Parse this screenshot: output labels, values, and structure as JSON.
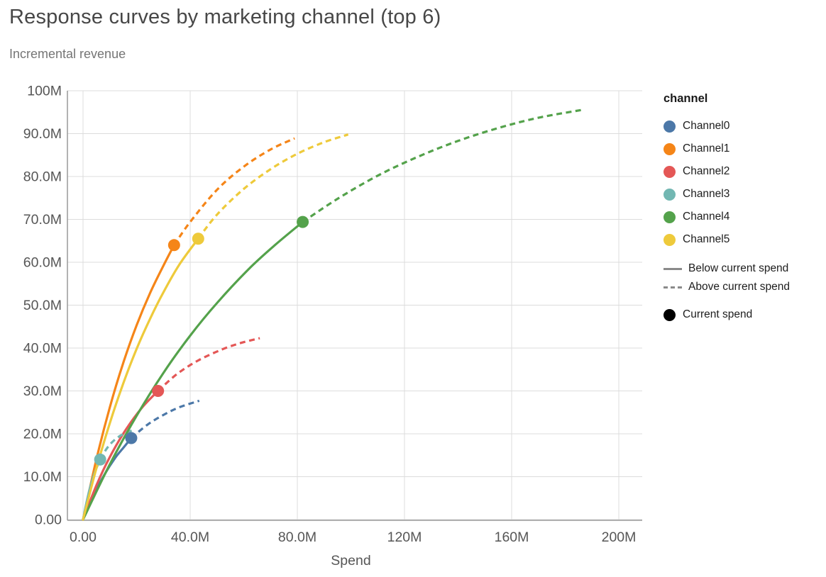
{
  "page": {
    "title": "Response curves by marketing channel (top 6)",
    "subtitle": "Incremental revenue"
  },
  "chart_data": {
    "type": "line",
    "title": "Response curves by marketing channel (top 6)",
    "subtitle": "Incremental revenue",
    "xlabel": "Spend",
    "ylabel": "Incremental revenue",
    "values_in": "millions",
    "xlim": [
      0,
      200
    ],
    "ylim": [
      0,
      100
    ],
    "grid": true,
    "legend_position": "right",
    "colors": {
      "grid": "#dcdcdc",
      "domain": "#9a9a9a",
      "tick_label": "#565656",
      "legend_line": "#8a8a8a",
      "current_spend_dot": "#000000"
    },
    "x_ticks": [
      {
        "value": 0,
        "label": "0.00"
      },
      {
        "value": 40,
        "label": "40.0M"
      },
      {
        "value": 80,
        "label": "80.0M"
      },
      {
        "value": 120,
        "label": "120M"
      },
      {
        "value": 160,
        "label": "160M"
      },
      {
        "value": 200,
        "label": "200M"
      }
    ],
    "y_ticks": [
      {
        "value": 0,
        "label": "0.00"
      },
      {
        "value": 10,
        "label": "10.0M"
      },
      {
        "value": 20,
        "label": "20.0M"
      },
      {
        "value": 30,
        "label": "30.0M"
      },
      {
        "value": 40,
        "label": "40.0M"
      },
      {
        "value": 50,
        "label": "50.0M"
      },
      {
        "value": 60,
        "label": "60.0M"
      },
      {
        "value": 70,
        "label": "70.0M"
      },
      {
        "value": 80,
        "label": "80.0M"
      },
      {
        "value": 90,
        "label": "90.0M"
      },
      {
        "value": 100,
        "label": "100M"
      }
    ],
    "series": [
      {
        "name": "Channel0",
        "color": "#4c78a8",
        "current_spend": {
          "x": 18,
          "y": 19
        },
        "solid": [
          [
            0,
            0
          ],
          [
            4,
            5.8
          ],
          [
            8,
            10.5
          ],
          [
            12,
            14.4
          ],
          [
            15,
            16.7
          ],
          [
            18,
            19
          ]
        ],
        "dashed": [
          [
            18,
            19
          ],
          [
            24,
            22.1
          ],
          [
            30,
            24.4
          ],
          [
            36,
            26.2
          ],
          [
            43.4,
            27.7
          ]
        ]
      },
      {
        "name": "Channel1",
        "color": "#f58518",
        "current_spend": {
          "x": 34,
          "y": 64
        },
        "solid": [
          [
            0,
            0
          ],
          [
            5,
            14.1
          ],
          [
            10,
            26.2
          ],
          [
            15,
            36.5
          ],
          [
            20,
            45.3
          ],
          [
            25,
            52.8
          ],
          [
            30,
            59.2
          ],
          [
            34,
            64
          ]
        ],
        "dashed": [
          [
            34,
            64
          ],
          [
            40,
            69.4
          ],
          [
            50,
            76.9
          ],
          [
            60,
            82.3
          ],
          [
            70,
            86.3
          ],
          [
            79,
            88.9
          ]
        ]
      },
      {
        "name": "Channel2",
        "color": "#e45756",
        "current_spend": {
          "x": 28,
          "y": 30
        },
        "solid": [
          [
            0,
            0
          ],
          [
            5,
            8
          ],
          [
            10,
            14.6
          ],
          [
            16,
            21
          ],
          [
            22,
            26.1
          ],
          [
            28,
            30
          ]
        ],
        "dashed": [
          [
            28,
            30
          ],
          [
            35,
            33.9
          ],
          [
            43,
            37.1
          ],
          [
            52,
            39.7
          ],
          [
            59,
            41.2
          ],
          [
            66,
            42.3
          ]
        ]
      },
      {
        "name": "Channel3",
        "color": "#72b7b2",
        "current_spend": {
          "x": 6.4,
          "y": 14
        },
        "solid": [
          [
            0,
            0
          ],
          [
            1.5,
            4.6
          ],
          [
            3,
            8.3
          ],
          [
            4.5,
            11.2
          ],
          [
            6.4,
            14
          ]
        ],
        "dashed": [
          [
            6.4,
            14
          ],
          [
            9,
            16.7
          ],
          [
            12,
            18.7
          ],
          [
            15.5,
            20.1
          ],
          [
            19.3,
            21
          ]
        ]
      },
      {
        "name": "Channel4",
        "color": "#54a24b",
        "current_spend": {
          "x": 82,
          "y": 69.4
        },
        "solid": [
          [
            0,
            0
          ],
          [
            10,
            12.9
          ],
          [
            20,
            24.2
          ],
          [
            30,
            34.2
          ],
          [
            40,
            42.9
          ],
          [
            50,
            50.5
          ],
          [
            62,
            58.5
          ],
          [
            72,
            64.2
          ],
          [
            82,
            69.4
          ]
        ],
        "dashed": [
          [
            82,
            69.4
          ],
          [
            95,
            74.8
          ],
          [
            110,
            80.2
          ],
          [
            125,
            84.6
          ],
          [
            140,
            88.3
          ],
          [
            155,
            91.3
          ],
          [
            170,
            93.7
          ],
          [
            186,
            95.5
          ]
        ]
      },
      {
        "name": "Channel5",
        "color": "#eeca3b",
        "current_spend": {
          "x": 43,
          "y": 65.5
        },
        "solid": [
          [
            0,
            0
          ],
          [
            5,
            12
          ],
          [
            10,
            22.5
          ],
          [
            15,
            31.7
          ],
          [
            20,
            39.8
          ],
          [
            25,
            46.8
          ],
          [
            30,
            53
          ],
          [
            36,
            59.5
          ],
          [
            43,
            65.5
          ]
        ],
        "dashed": [
          [
            43,
            65.5
          ],
          [
            50,
            71.1
          ],
          [
            60,
            77.1
          ],
          [
            70,
            81.7
          ],
          [
            80,
            85.3
          ],
          [
            90,
            88
          ],
          [
            99,
            89.8
          ]
        ]
      }
    ],
    "legend": {
      "title": "channel",
      "below_label": "Below current spend",
      "above_label": "Above current spend",
      "current_label": "Current spend"
    }
  }
}
